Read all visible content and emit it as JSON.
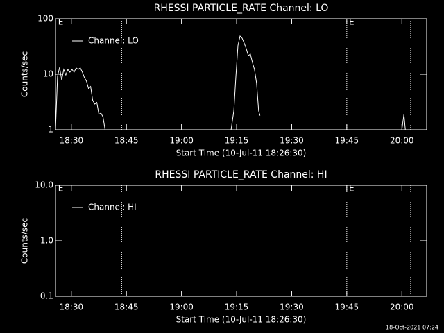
{
  "chart_data": [
    {
      "type": "line",
      "title": "RHESSI PARTICLE_RATE Channel: LO",
      "xlabel": "Start Time (10-Jul-11 18:26:30)",
      "ylabel": "Counts/sec",
      "log_y": true,
      "legend": "upper left",
      "xlim": [
        1105.69,
        1206.75
      ],
      "ylim": [
        1,
        100
      ],
      "xticks": [
        {
          "value": 1110,
          "label": "18:30"
        },
        {
          "value": 1125,
          "label": "18:45"
        },
        {
          "value": 1140,
          "label": "19:00"
        },
        {
          "value": 1155,
          "label": "19:15"
        },
        {
          "value": 1170,
          "label": "19:30"
        },
        {
          "value": 1185,
          "label": "19:45"
        },
        {
          "value": 1200,
          "label": "20:00"
        }
      ],
      "yticks": [
        1,
        10,
        100
      ],
      "event_lines": [
        1123.7,
        1185,
        1202.4
      ],
      "annotations": [
        {
          "text": "E",
          "x": 1106.4
        },
        {
          "text": "E",
          "x": 1185.6
        }
      ],
      "x": [
        1105.69,
        1106.25,
        1106.81,
        1107.37,
        1107.94,
        1108.5,
        1109.06,
        1109.62,
        1110.19,
        1110.75,
        1111.31,
        1111.87,
        1112.44,
        1113,
        1113.56,
        1114.12,
        1114.69,
        1115.25,
        1115.81,
        1116.37,
        1116.94,
        1117.5,
        1118.06,
        1118.62,
        1119.19,
        1130,
        1153.5,
        1154.25,
        1154.81,
        1155.37,
        1155.94,
        1156.5,
        1157.06,
        1157.62,
        1158.19,
        1158.75,
        1159.31,
        1159.87,
        1160.44,
        1161,
        1161.37,
        1180,
        1200,
        1200.56,
        1200.94
      ],
      "series": [
        {
          "name": "Channel: LO",
          "color": "#ffffff",
          "values": [
            1,
            9.2,
            13.3,
            7.9,
            12.2,
            9.7,
            12.2,
            10.9,
            12.2,
            10.9,
            13,
            12.2,
            13,
            10.9,
            8.7,
            7.5,
            5.5,
            6,
            3.4,
            2.9,
            3.1,
            1.9,
            2,
            1.7,
            1,
            null,
            1,
            2.2,
            9.2,
            33,
            48.7,
            44.7,
            36.5,
            29,
            21.7,
            23,
            16.3,
            12.2,
            6.9,
            2.2,
            1.8,
            null,
            1,
            1.9,
            1
          ]
        }
      ]
    },
    {
      "type": "line",
      "title": "RHESSI PARTICLE_RATE Channel: HI",
      "xlabel": "Start Time (10-Jul-11 18:26:30)",
      "ylabel": "Counts/sec",
      "log_y": true,
      "legend": "upper left",
      "xlim": [
        1105.69,
        1206.75
      ],
      "ylim": [
        0.1,
        10
      ],
      "xticks": [
        {
          "value": 1110,
          "label": "18:30"
        },
        {
          "value": 1125,
          "label": "18:45"
        },
        {
          "value": 1140,
          "label": "19:00"
        },
        {
          "value": 1155,
          "label": "19:15"
        },
        {
          "value": 1170,
          "label": "19:30"
        },
        {
          "value": 1185,
          "label": "19:45"
        },
        {
          "value": 1200,
          "label": "20:00"
        }
      ],
      "yticks": [
        {
          "value": 0.1,
          "label": "0.1"
        },
        {
          "value": 1,
          "label": "1.0"
        },
        {
          "value": 10,
          "label": "10.0"
        }
      ],
      "event_lines": [
        1123.7,
        1185,
        1202.4
      ],
      "annotations": [
        {
          "text": "E",
          "x": 1106.4
        },
        {
          "text": "E",
          "x": 1185.6
        }
      ],
      "x": [],
      "series": [
        {
          "name": "Channel: HI",
          "color": "#ffffff",
          "values": []
        }
      ]
    }
  ],
  "footer": "18-Oct-2021 07:24"
}
